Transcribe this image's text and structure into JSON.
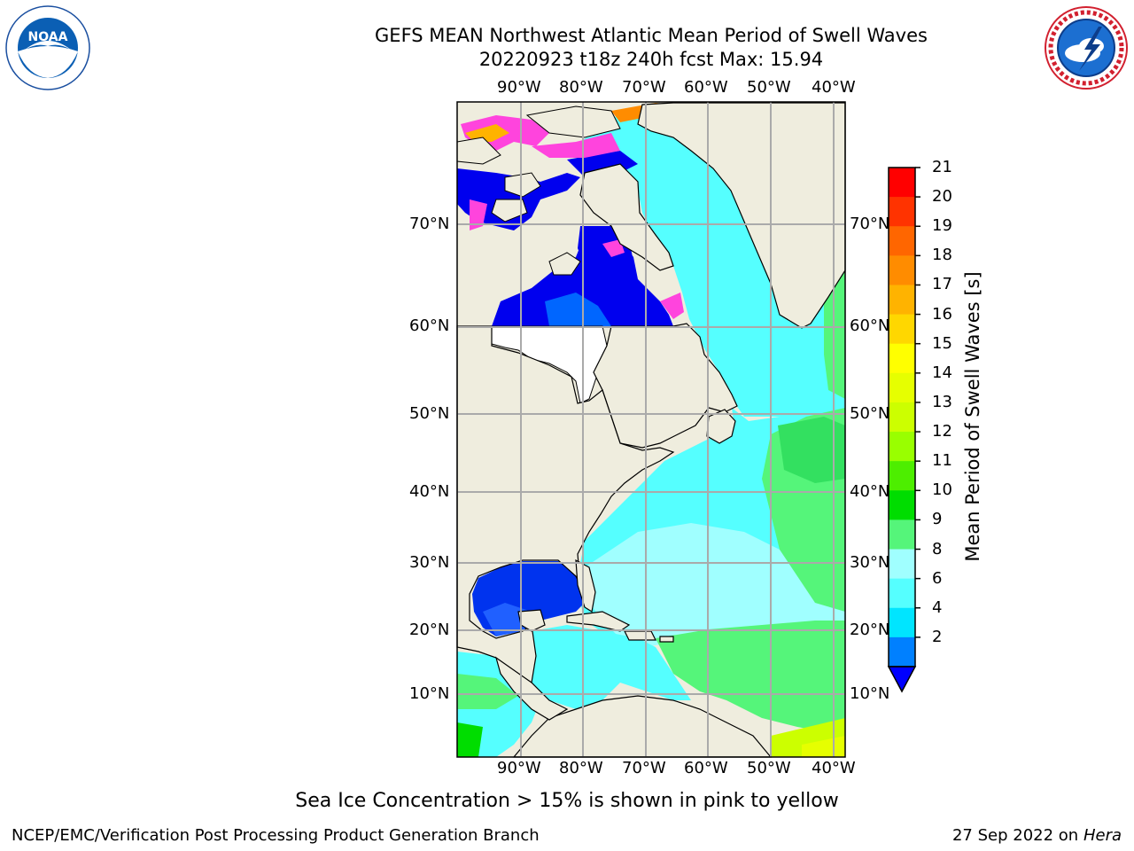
{
  "header": {
    "title_line1": "GEFS MEAN Northwest Atlantic Mean Period of Swell Waves",
    "title_line2": "20220923 t18z 240h fcst   Max: 15.94"
  },
  "logos": {
    "left": {
      "name": "NOAA",
      "ring_text": "NATIONAL OCEANIC AND ATMOSPHERIC ADMINISTRATION",
      "bottom_text": "U.S. DEPARTMENT OF COMMERCE"
    },
    "right": {
      "name": "NATIONAL WEATHER SERVICE"
    }
  },
  "map": {
    "lon_labels": [
      "90°W",
      "80°W",
      "70°W",
      "60°W",
      "50°W",
      "40°W"
    ],
    "lat_labels": [
      "70°N",
      "60°N",
      "50°N",
      "40°N",
      "30°N",
      "20°N",
      "10°N"
    ]
  },
  "colorbar": {
    "label": "Mean Period of Swell Waves [s]",
    "ticks": [
      "21",
      "20",
      "19",
      "18",
      "17",
      "16",
      "15",
      "14",
      "13",
      "12",
      "11",
      "10",
      "9",
      "8",
      "6",
      "4",
      "2"
    ],
    "colors": [
      "#ff0000",
      "#ff3300",
      "#ff6600",
      "#ff8c00",
      "#ffb300",
      "#ffd700",
      "#ffff00",
      "#e6ff00",
      "#ccff00",
      "#99ff00",
      "#4dee00",
      "#00dd00",
      "#55f57a",
      "#a0ffff",
      "#55ffff",
      "#00e5ff",
      "#0080ff"
    ],
    "extend_color": "#0000ff"
  },
  "caption": "Sea Ice Concentration > 15% is shown in pink to yellow",
  "footer": {
    "left": "NCEP/EMC/Verification Post Processing Product Generation Branch",
    "right_date": "27 Sep 2022 on",
    "right_host": "Hera"
  }
}
